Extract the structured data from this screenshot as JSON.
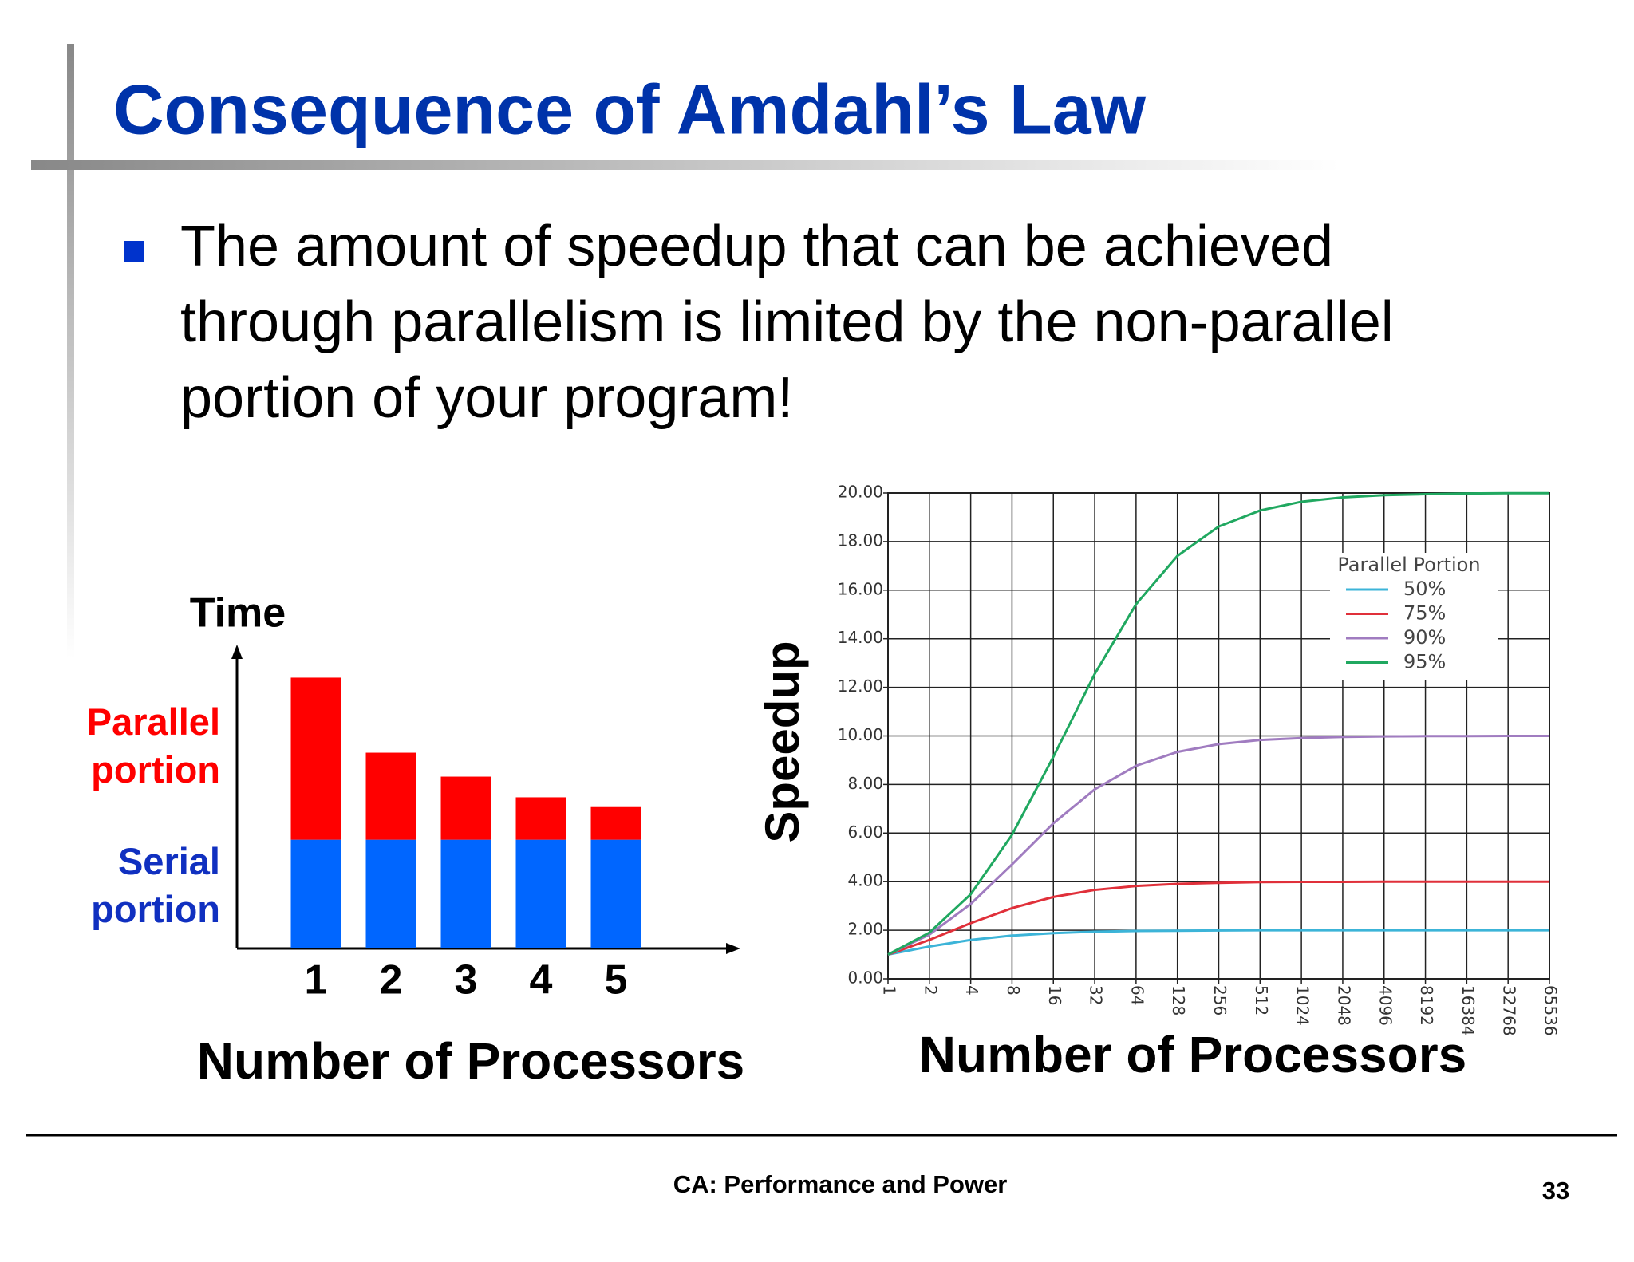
{
  "slide": {
    "title": "Consequence of Amdahl’s Law",
    "bullet": "The amount of speedup that can be achieved through parallelism is limited by the non-parallel portion of your program!",
    "footer": "CA: Performance and Power",
    "page_number": "33"
  },
  "chart_data": [
    {
      "type": "bar",
      "stacked": true,
      "y_label": "Time",
      "x_label": "Number of Processors",
      "categories": [
        "1",
        "2",
        "3",
        "4",
        "5"
      ],
      "series": [
        {
          "name": "Serial portion",
          "color": "#0066ff",
          "values": [
            1,
            1,
            1,
            1,
            1
          ]
        },
        {
          "name": "Parallel portion",
          "color": "#ff0000",
          "values": [
            1.49,
            0.8,
            0.58,
            0.39,
            0.3
          ]
        }
      ],
      "ylim": [
        0,
        2.75
      ]
    },
    {
      "type": "line",
      "y_label": "Speedup",
      "x_label": "Number of Processors",
      "x": [
        1,
        2,
        4,
        8,
        16,
        32,
        64,
        128,
        256,
        512,
        1024,
        2048,
        4096,
        8192,
        16384,
        32768,
        65536
      ],
      "xlim": [
        1,
        65536
      ],
      "xticks": [
        1,
        2,
        4,
        8,
        16,
        32,
        64,
        128,
        256,
        512,
        1024,
        2048,
        4096,
        8192,
        16384,
        32768,
        65536
      ],
      "xscale": "log2",
      "ylim": [
        0,
        20
      ],
      "yticks": [
        {
          "value": 0,
          "label": "0.00"
        },
        {
          "value": 2,
          "label": "2.00"
        },
        {
          "value": 4,
          "label": "4.00"
        },
        {
          "value": 6,
          "label": "6.00"
        },
        {
          "value": 8,
          "label": "8.00"
        },
        {
          "value": 10,
          "label": "10.00"
        },
        {
          "value": 12,
          "label": "12.00"
        },
        {
          "value": 14,
          "label": "14.00"
        },
        {
          "value": 16,
          "label": "16.00"
        },
        {
          "value": 18,
          "label": "18.00"
        },
        {
          "value": 20,
          "label": "20.00"
        }
      ],
      "grid": true,
      "legend_title": "Parallel Portion",
      "legend_position": "upper-right",
      "series": [
        {
          "name": "50%",
          "color": "#3cb4d8",
          "values": [
            1,
            1.33,
            1.6,
            1.78,
            1.88,
            1.94,
            1.97,
            1.98,
            1.99,
            2,
            2,
            2,
            2,
            2,
            2,
            2,
            2
          ]
        },
        {
          "name": "75%",
          "color": "#e0303a",
          "values": [
            1,
            1.6,
            2.29,
            2.91,
            3.37,
            3.66,
            3.82,
            3.91,
            3.95,
            3.98,
            3.99,
            3.99,
            4,
            4,
            4,
            4,
            4
          ]
        },
        {
          "name": "90%",
          "color": "#a07cc0",
          "values": [
            1,
            1.82,
            3.08,
            4.71,
            6.4,
            7.8,
            8.77,
            9.34,
            9.66,
            9.83,
            9.91,
            9.96,
            9.98,
            9.99,
            9.99,
            10,
            10
          ]
        },
        {
          "name": "95%",
          "color": "#20a860",
          "values": [
            1,
            1.9,
            3.48,
            5.93,
            9.14,
            12.55,
            15.42,
            17.41,
            18.62,
            19.28,
            19.64,
            19.82,
            19.91,
            19.95,
            19.98,
            19.99,
            19.99
          ]
        }
      ]
    }
  ]
}
